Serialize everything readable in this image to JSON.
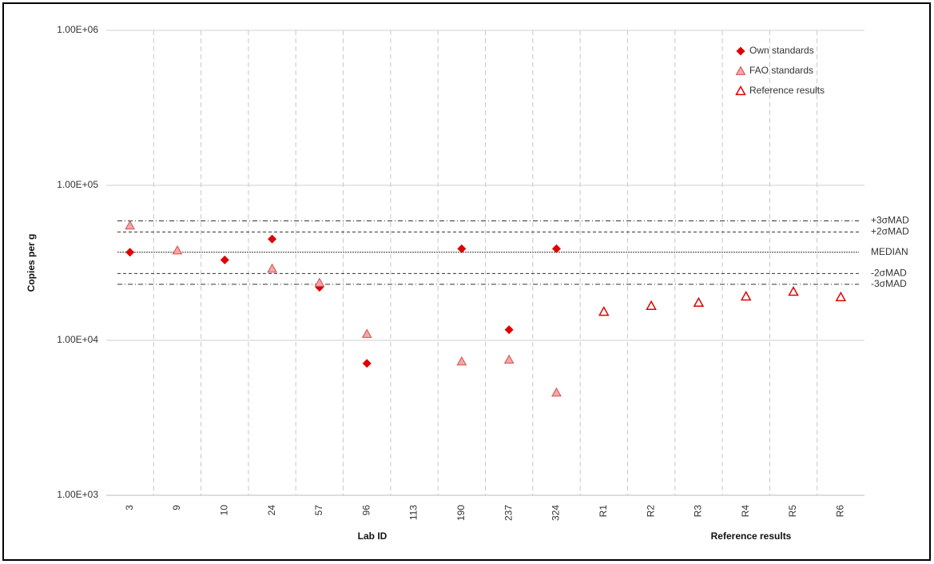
{
  "chart_data": {
    "type": "scatter",
    "ylabel": "Copies per g",
    "xlabel": "Lab ID",
    "xlabel_secondary": "Reference results",
    "log_scale_y": true,
    "grid": true,
    "legend_position": "top-right",
    "categories": [
      "3",
      "9",
      "10",
      "24",
      "57",
      "96",
      "113",
      "190",
      "237",
      "324",
      "R1",
      "R2",
      "R3",
      "R4",
      "R5",
      "R6"
    ],
    "ylim": [
      1000,
      1000000
    ],
    "yticks": [
      {
        "value": 1000,
        "label": "1.00E+03"
      },
      {
        "value": 10000,
        "label": "1.00E+04"
      },
      {
        "value": 100000,
        "label": "1.00E+05"
      },
      {
        "value": 1000000,
        "label": "1.00E+06"
      }
    ],
    "series": [
      {
        "name": "Own standards",
        "color": "#e00000",
        "marker": "diamond",
        "values": [
          37000,
          null,
          33000,
          45000,
          22000,
          7100,
          null,
          39000,
          11700,
          39000,
          null,
          null,
          null,
          null,
          null,
          null
        ]
      },
      {
        "name": "FAO standards",
        "color": "#f4a6a6",
        "marker": "triangle",
        "values": [
          55000,
          38000,
          null,
          29000,
          23500,
          11000,
          null,
          7300,
          7500,
          4600,
          null,
          null,
          null,
          null,
          null,
          null
        ]
      },
      {
        "name": "Reference results",
        "color": "#e00000",
        "marker": "triangle-open",
        "values": [
          null,
          null,
          null,
          null,
          null,
          null,
          null,
          null,
          null,
          null,
          15300,
          16700,
          17500,
          19200,
          20600,
          19000
        ]
      }
    ],
    "reference_lines": [
      {
        "label": "+3σMAD",
        "value": 59000,
        "style": "dash-dot"
      },
      {
        "label": "+2σMAD",
        "value": 50000,
        "style": "dashed"
      },
      {
        "label": "MEDIAN",
        "value": 37000,
        "style": "dotted"
      },
      {
        "label": "-2σMAD",
        "value": 27000,
        "style": "dashed"
      },
      {
        "label": "-3σMAD",
        "value": 23000,
        "style": "dash-dot"
      }
    ]
  }
}
